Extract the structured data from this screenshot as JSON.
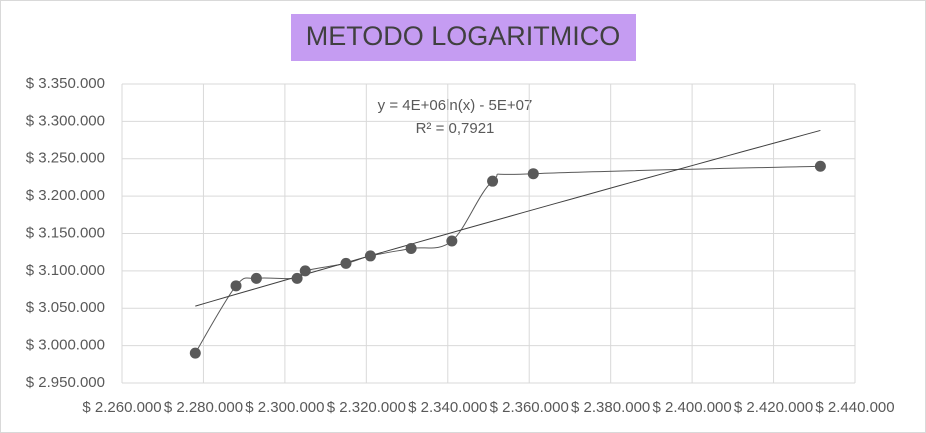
{
  "chart_data": {
    "type": "scatter",
    "title": "METODO LOGARITMICO",
    "annotations": [
      "y = 4E+06ln(x) - 5E+07",
      "R² = 0,7921"
    ],
    "series": [
      {
        "color": "#595959",
        "x": [
          2278000,
          2288000,
          2293000,
          2303000,
          2305000,
          2315000,
          2321000,
          2331000,
          2341000,
          2351000,
          2361000,
          2431500
        ],
        "values": [
          2990000,
          3080000,
          3090000,
          3090000,
          3100000,
          3110000,
          3120000,
          3130000,
          3140000,
          3220000,
          3230000,
          3240000
        ]
      }
    ],
    "trendline": {
      "type": "log",
      "color": "#404040"
    },
    "xlim": [
      2260000,
      2440000
    ],
    "xticks": [
      {
        "value": 2260000,
        "label": "$ 2.260.000"
      },
      {
        "value": 2280000,
        "label": "$ 2.280.000"
      },
      {
        "value": 2300000,
        "label": "$ 2.300.000"
      },
      {
        "value": 2320000,
        "label": "$ 2.320.000"
      },
      {
        "value": 2340000,
        "label": "$ 2.340.000"
      },
      {
        "value": 2360000,
        "label": "$ 2.360.000"
      },
      {
        "value": 2380000,
        "label": "$ 2.380.000"
      },
      {
        "value": 2400000,
        "label": "$ 2.400.000"
      },
      {
        "value": 2420000,
        "label": "$ 2.420.000"
      },
      {
        "value": 2440000,
        "label": "$ 2.440.000"
      }
    ],
    "ylim": [
      2950000,
      3350000
    ],
    "yticks": [
      {
        "value": 2950000,
        "label": "$ 2.950.000"
      },
      {
        "value": 3000000,
        "label": "$ 3.000.000"
      },
      {
        "value": 3050000,
        "label": "$ 3.050.000"
      },
      {
        "value": 3100000,
        "label": "$ 3.100.000"
      },
      {
        "value": 3150000,
        "label": "$ 3.150.000"
      },
      {
        "value": 3200000,
        "label": "$ 3.200.000"
      },
      {
        "value": 3250000,
        "label": "$ 3.250.000"
      },
      {
        "value": 3300000,
        "label": "$ 3.300.000"
      },
      {
        "value": 3350000,
        "label": "$ 3.350.000"
      }
    ],
    "grid": true,
    "title_background": "#c59cf2"
  }
}
